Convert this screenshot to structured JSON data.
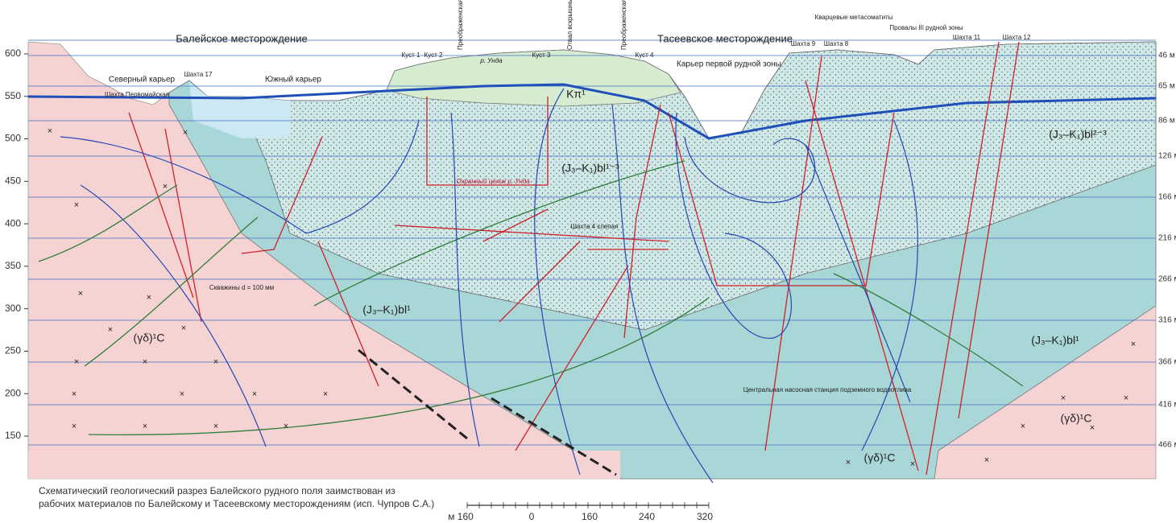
{
  "axis_left": {
    "ticks": [
      600,
      550,
      500,
      450,
      400,
      350,
      300,
      250,
      200,
      150
    ]
  },
  "axis_right": {
    "labels": [
      "46 м",
      "65 м",
      "86 м",
      "126 м",
      "166 м",
      "216 м",
      "266 м",
      "316 м",
      "366 м",
      "416 м",
      "466 м"
    ]
  },
  "deposits": [
    "Балейское месторождение",
    "Тасеевское месторождение"
  ],
  "labels": [
    "Северный карьер",
    "Шахта Первомайская",
    "Шахта 17",
    "Южный карьер",
    "Куст 1",
    "Куст 2",
    "Куст 3",
    "Куст 4",
    "р. Унда",
    "Преображенская водоотводная дамба",
    "Отвал вскрышных пород",
    "Преображенская водоотводная дамба",
    "Карьер первой рудной зоны",
    "Кварцевые метасоматиты",
    "Провалы III рудной зоны",
    "Шахта 9",
    "Шахта 8",
    "Шахта 11",
    "Шахта 12",
    "Шахта 4 слепая",
    "Скважины d = 100 мм",
    "Центральная насосная станция подземного водоотлива",
    "Охранный целик р. Унда"
  ],
  "formations": [
    "Kπ¹",
    "(J₃–K₁)bl¹⁻³",
    "(J₃–K₁)bl²⁻³",
    "(J₃–K₁)bl¹",
    "(J₃–K₁)bl¹",
    "(γδ)¹C",
    "(γδ)¹C",
    "(γδ)¹C"
  ],
  "caption": [
    "Схематический геологический разрез Балейского рудного поля заимствован из",
    "рабочих материалов по Балейскому и Тасеевскому месторождениям (исп. Чупров С.А.)"
  ],
  "scale_bar": {
    "labels": [
      "м 160",
      "0",
      "160",
      "240",
      "320"
    ]
  }
}
